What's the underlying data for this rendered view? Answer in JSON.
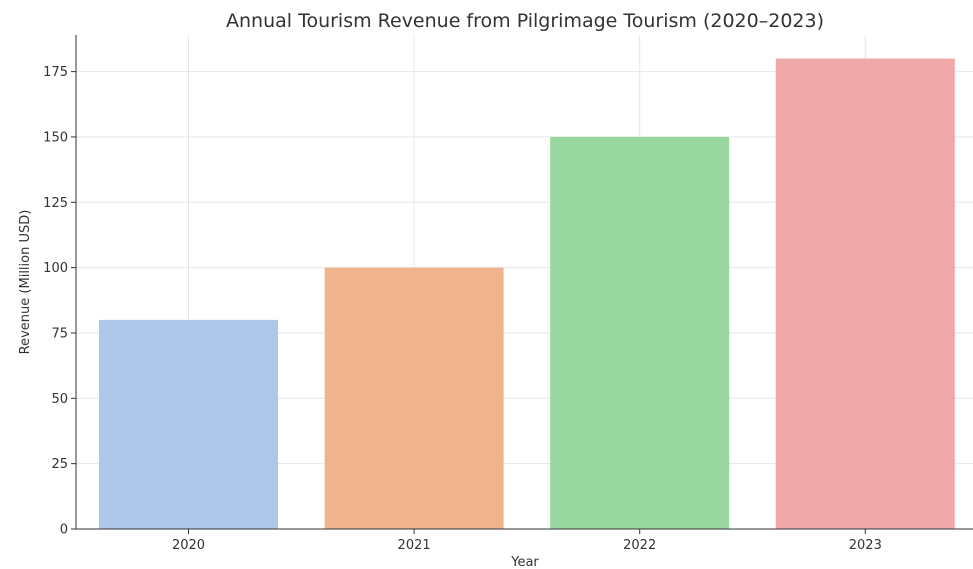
{
  "chart_data": {
    "type": "bar",
    "title": "Annual Tourism Revenue from Pilgrimage Tourism (2020–2023)",
    "xlabel": "Year",
    "ylabel": "Revenue (Million USD)",
    "categories": [
      "2020",
      "2021",
      "2022",
      "2023"
    ],
    "values": [
      80,
      100,
      150,
      180
    ],
    "colors": [
      "#aec7e8",
      "#f0b48c",
      "#98d8a0",
      "#f0a8a8"
    ],
    "ylim": [
      0,
      189
    ],
    "yticks": [
      0,
      25,
      50,
      75,
      100,
      125,
      150,
      175
    ],
    "grid": true,
    "legend": "none"
  }
}
